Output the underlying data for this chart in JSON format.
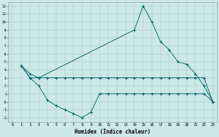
{
  "xlabel": "Humidex (Indice chaleur)",
  "xlim": [
    -0.5,
    23.5
  ],
  "ylim": [
    -2.5,
    12.5
  ],
  "xticks": [
    0,
    1,
    2,
    3,
    4,
    5,
    6,
    7,
    8,
    9,
    10,
    11,
    12,
    13,
    14,
    15,
    16,
    17,
    18,
    19,
    20,
    21,
    22,
    23
  ],
  "yticks": [
    -2,
    -1,
    0,
    1,
    2,
    3,
    4,
    5,
    6,
    7,
    8,
    9,
    10,
    11,
    12
  ],
  "bg_color": "#cce8e8",
  "line_color": "#006666",
  "line1_x": [
    1,
    2,
    3,
    14,
    15,
    16,
    17,
    18,
    19,
    20,
    21,
    22,
    23
  ],
  "line1_y": [
    4.5,
    3.5,
    3.0,
    9.0,
    12.0,
    10.0,
    7.5,
    6.5,
    5.0,
    4.7,
    3.5,
    2.0,
    0.0
  ],
  "line2_x": [
    1,
    2,
    3,
    4,
    5,
    6,
    7,
    8,
    9,
    10,
    11,
    12,
    13,
    14,
    15,
    16,
    17,
    18,
    19,
    20,
    21,
    22,
    23
  ],
  "line2_y": [
    4.5,
    3.0,
    3.0,
    3.0,
    3.0,
    3.0,
    3.0,
    3.0,
    3.0,
    3.0,
    3.0,
    3.0,
    3.0,
    3.0,
    3.0,
    3.0,
    3.0,
    3.0,
    3.0,
    3.0,
    3.0,
    3.0,
    0.0
  ],
  "line3_x": [
    1,
    2,
    3,
    4,
    5,
    6,
    7,
    8,
    9,
    10,
    11,
    12,
    13,
    14,
    15,
    16,
    17,
    18,
    19,
    20,
    21,
    22,
    23
  ],
  "line3_y": [
    4.5,
    3.0,
    2.0,
    0.2,
    -0.5,
    -1.0,
    -1.5,
    -2.0,
    -1.3,
    1.0,
    1.0,
    1.0,
    1.0,
    1.0,
    1.0,
    1.0,
    1.0,
    1.0,
    1.0,
    1.0,
    1.0,
    1.0,
    0.0
  ]
}
